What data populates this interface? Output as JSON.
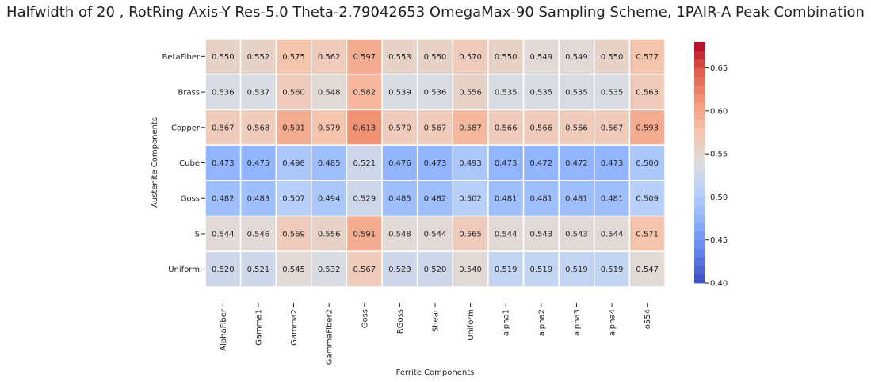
{
  "chart_data": {
    "type": "heatmap",
    "title": "Halfwidth of 20 , RotRing Axis-Y Res-5.0 Theta-2.79042653 OmegaMax-90 Sampling Scheme, 1PAIR-A Peak Combination",
    "xlabel": "Ferrite Components",
    "ylabel": "Austenite Components",
    "x_categories": [
      "AlphaFiber",
      "Gamma1",
      "Gamma2",
      "GammaFiber2",
      "Goss",
      "RGoss",
      "Shear",
      "Uniform",
      "alpha1",
      "alpha2",
      "alpha3",
      "alpha4",
      "o554"
    ],
    "y_categories": [
      "BetaFiber",
      "Brass",
      "Copper",
      "Cube",
      "Goss",
      "S",
      "Uniform"
    ],
    "values": [
      [
        0.55,
        0.552,
        0.575,
        0.562,
        0.597,
        0.553,
        0.55,
        0.57,
        0.55,
        0.549,
        0.549,
        0.55,
        0.577
      ],
      [
        0.536,
        0.537,
        0.56,
        0.548,
        0.582,
        0.539,
        0.536,
        0.556,
        0.535,
        0.535,
        0.535,
        0.535,
        0.563
      ],
      [
        0.567,
        0.568,
        0.591,
        0.579,
        0.613,
        0.57,
        0.567,
        0.587,
        0.566,
        0.566,
        0.566,
        0.567,
        0.593
      ],
      [
        0.473,
        0.475,
        0.498,
        0.485,
        0.521,
        0.476,
        0.473,
        0.493,
        0.473,
        0.472,
        0.472,
        0.473,
        0.5
      ],
      [
        0.482,
        0.483,
        0.507,
        0.494,
        0.529,
        0.485,
        0.482,
        0.502,
        0.481,
        0.481,
        0.481,
        0.481,
        0.509
      ],
      [
        0.544,
        0.546,
        0.569,
        0.556,
        0.591,
        0.548,
        0.544,
        0.565,
        0.544,
        0.543,
        0.543,
        0.544,
        0.571
      ],
      [
        0.52,
        0.521,
        0.545,
        0.532,
        0.567,
        0.523,
        0.52,
        0.54,
        0.519,
        0.519,
        0.519,
        0.519,
        0.547
      ]
    ],
    "value_format_decimals": 3,
    "colormap": "coolwarm",
    "colorbar": {
      "vmin": 0.4,
      "vmax": 0.68,
      "levels": 28,
      "ticks": [
        "0.40",
        "0.45",
        "0.50",
        "0.55",
        "0.60",
        "0.65"
      ],
      "tick_values": [
        0.4,
        0.45,
        0.5,
        0.55,
        0.6,
        0.65
      ]
    },
    "grid": false,
    "legend": "colorbar-right"
  }
}
